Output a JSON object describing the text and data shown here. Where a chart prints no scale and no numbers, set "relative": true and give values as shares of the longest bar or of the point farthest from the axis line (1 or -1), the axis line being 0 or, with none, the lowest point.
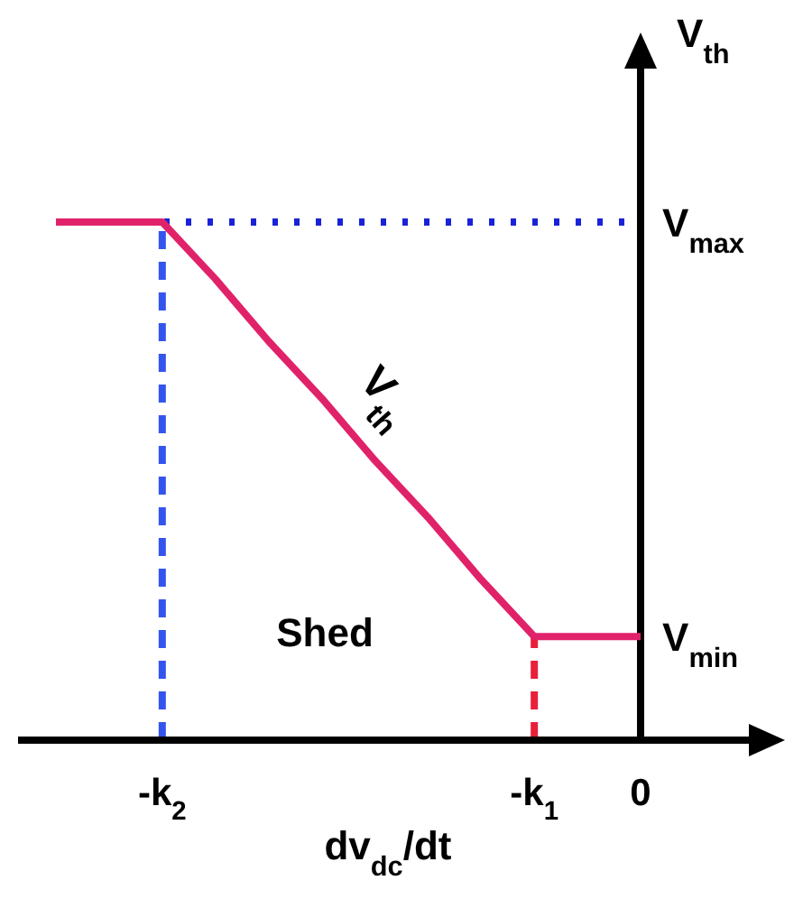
{
  "chart_data": {
    "type": "line",
    "relative": true,
    "xlabel": "dv$_{dc}$/dt",
    "ylabel": "V$_{th}$",
    "categories": [
      null,
      null,
      "-k$_{2}$",
      null,
      null,
      null,
      null,
      null,
      null,
      "-k$_{1}$",
      null,
      "0"
    ],
    "series": [
      {
        "name": "V$_{th}$",
        "color": "#e0226a",
        "values": [
          1,
          1,
          1,
          0.89,
          0.77,
          0.66,
          0.54,
          0.43,
          0.31,
          0.2,
          0.2,
          0.2
        ]
      }
    ],
    "ref_lines": [
      {
        "axis": "y",
        "value": 1,
        "label": "V$_{max}$",
        "color": "#1a22d8",
        "line_style": "dotted"
      },
      {
        "axis": "x",
        "value": "-k$_{2}$",
        "color": "#3355ee",
        "line_style": "dashed"
      },
      {
        "axis": "x",
        "value": "-k$_{1}$",
        "color": "#e8203a",
        "line_style": "dashed"
      }
    ],
    "annotations": [
      "Shed",
      {
        "text": "V$_{min}$",
        "x": "0",
        "y": 0.2
      }
    ],
    "marker": "none",
    "line_style": "solid"
  }
}
